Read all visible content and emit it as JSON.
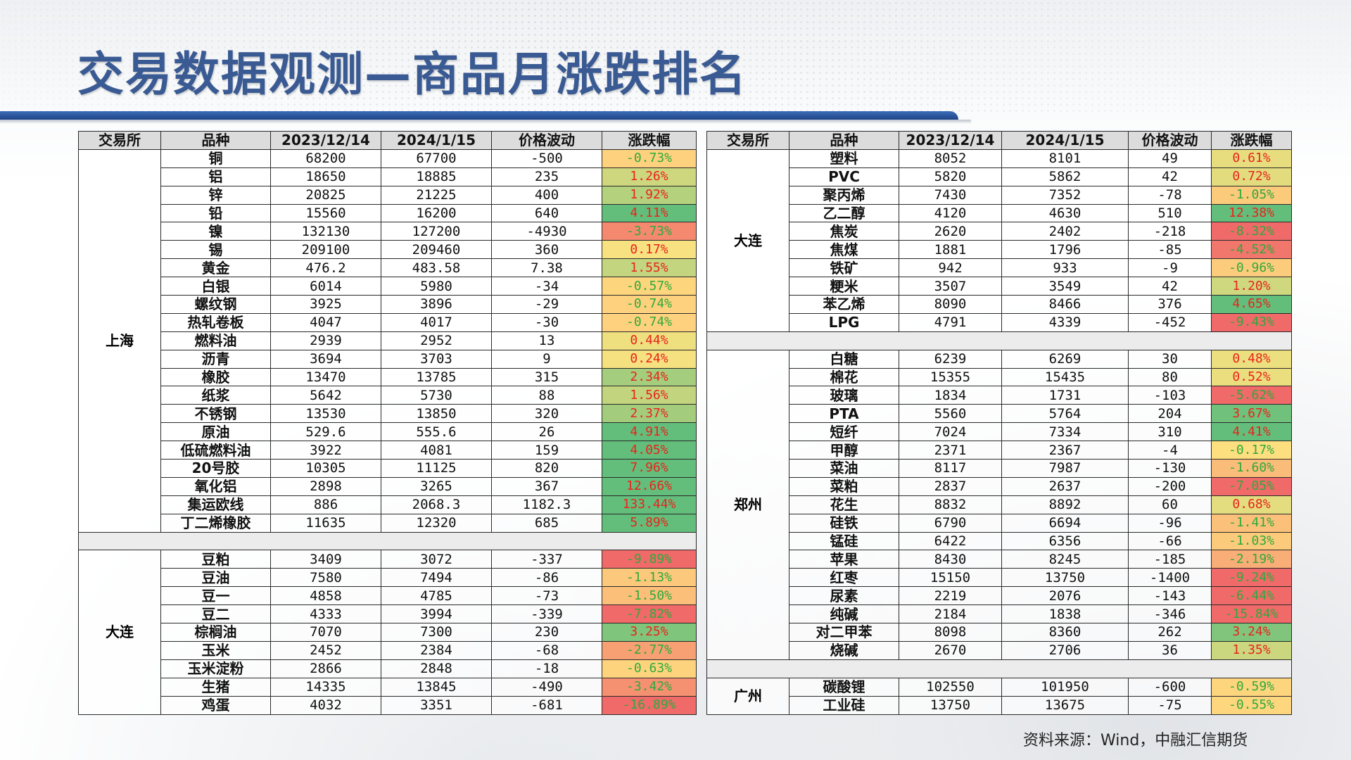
{
  "title": "交易数据观测—商品月涨跌排名",
  "source": "资料来源：Wind，中融汇信期货",
  "headers": [
    "交易所",
    "品种",
    "2023/12/14",
    "2024/1/15",
    "价格波动",
    "涨跌幅"
  ],
  "colors": {
    "title": "#3a5a93",
    "red": "#f06a6a",
    "green": "#63be7b",
    "yellow": "#ffe380",
    "rise_text": "#e8241c",
    "fall_text": "#2eaa3c"
  },
  "left_groups": [
    {
      "exchange": "上海",
      "rows": [
        [
          "铜",
          "68200",
          "67700",
          "-500",
          "-0.73%"
        ],
        [
          "铝",
          "18650",
          "18885",
          "235",
          "1.26%"
        ],
        [
          "锌",
          "20825",
          "21225",
          "400",
          "1.92%"
        ],
        [
          "铅",
          "15560",
          "16200",
          "640",
          "4.11%"
        ],
        [
          "镍",
          "132130",
          "127200",
          "-4930",
          "-3.73%"
        ],
        [
          "锡",
          "209100",
          "209460",
          "360",
          "0.17%"
        ],
        [
          "黄金",
          "476.2",
          "483.58",
          "7.38",
          "1.55%"
        ],
        [
          "白银",
          "6014",
          "5980",
          "-34",
          "-0.57%"
        ],
        [
          "螺纹钢",
          "3925",
          "3896",
          "-29",
          "-0.74%"
        ],
        [
          "热轧卷板",
          "4047",
          "4017",
          "-30",
          "-0.74%"
        ],
        [
          "燃料油",
          "2939",
          "2952",
          "13",
          "0.44%"
        ],
        [
          "沥青",
          "3694",
          "3703",
          "9",
          "0.24%"
        ],
        [
          "橡胶",
          "13470",
          "13785",
          "315",
          "2.34%"
        ],
        [
          "纸浆",
          "5642",
          "5730",
          "88",
          "1.56%"
        ],
        [
          "不锈钢",
          "13530",
          "13850",
          "320",
          "2.37%"
        ],
        [
          "原油",
          "529.6",
          "555.6",
          "26",
          "4.91%"
        ],
        [
          "低硫燃料油",
          "3922",
          "4081",
          "159",
          "4.05%"
        ],
        [
          "20号胶",
          "10305",
          "11125",
          "820",
          "7.96%"
        ],
        [
          "氧化铝",
          "2898",
          "3265",
          "367",
          "12.66%"
        ],
        [
          "集运欧线",
          "886",
          "2068.3",
          "1182.3",
          "133.44%"
        ],
        [
          "丁二烯橡胶",
          "11635",
          "12320",
          "685",
          "5.89%"
        ]
      ]
    },
    {
      "exchange": "大连",
      "rows": [
        [
          "豆粕",
          "3409",
          "3072",
          "-337",
          "-9.89%"
        ],
        [
          "豆油",
          "7580",
          "7494",
          "-86",
          "-1.13%"
        ],
        [
          "豆一",
          "4858",
          "4785",
          "-73",
          "-1.50%"
        ],
        [
          "豆二",
          "4333",
          "3994",
          "-339",
          "-7.82%"
        ],
        [
          "棕榈油",
          "7070",
          "7300",
          "230",
          "3.25%"
        ],
        [
          "玉米",
          "2452",
          "2384",
          "-68",
          "-2.77%"
        ],
        [
          "玉米淀粉",
          "2866",
          "2848",
          "-18",
          "-0.63%"
        ],
        [
          "生猪",
          "14335",
          "13845",
          "-490",
          "-3.42%"
        ],
        [
          "鸡蛋",
          "4032",
          "3351",
          "-681",
          "-16.89%"
        ]
      ]
    }
  ],
  "right_groups": [
    {
      "exchange": "大连",
      "rows": [
        [
          "塑料",
          "8052",
          "8101",
          "49",
          "0.61%"
        ],
        [
          "PVC",
          "5820",
          "5862",
          "42",
          "0.72%"
        ],
        [
          "聚丙烯",
          "7430",
          "7352",
          "-78",
          "-1.05%"
        ],
        [
          "乙二醇",
          "4120",
          "4630",
          "510",
          "12.38%"
        ],
        [
          "焦炭",
          "2620",
          "2402",
          "-218",
          "-8.32%"
        ],
        [
          "焦煤",
          "1881",
          "1796",
          "-85",
          "-4.52%"
        ],
        [
          "铁矿",
          "942",
          "933",
          "-9",
          "-0.96%"
        ],
        [
          "粳米",
          "3507",
          "3549",
          "42",
          "1.20%"
        ],
        [
          "苯乙烯",
          "8090",
          "8466",
          "376",
          "4.65%"
        ],
        [
          "LPG",
          "4791",
          "4339",
          "-452",
          "-9.43%"
        ]
      ]
    },
    {
      "exchange": "郑州",
      "rows": [
        [
          "白糖",
          "6239",
          "6269",
          "30",
          "0.48%"
        ],
        [
          "棉花",
          "15355",
          "15435",
          "80",
          "0.52%"
        ],
        [
          "玻璃",
          "1834",
          "1731",
          "-103",
          "-5.62%"
        ],
        [
          "PTA",
          "5560",
          "5764",
          "204",
          "3.67%"
        ],
        [
          "短纤",
          "7024",
          "7334",
          "310",
          "4.41%"
        ],
        [
          "甲醇",
          "2371",
          "2367",
          "-4",
          "-0.17%"
        ],
        [
          "菜油",
          "8117",
          "7987",
          "-130",
          "-1.60%"
        ],
        [
          "菜粕",
          "2837",
          "2637",
          "-200",
          "-7.05%"
        ],
        [
          "花生",
          "8832",
          "8892",
          "60",
          "0.68%"
        ],
        [
          "硅铁",
          "6790",
          "6694",
          "-96",
          "-1.41%"
        ],
        [
          "锰硅",
          "6422",
          "6356",
          "-66",
          "-1.03%"
        ],
        [
          "苹果",
          "8430",
          "8245",
          "-185",
          "-2.19%"
        ],
        [
          "红枣",
          "15150",
          "13750",
          "-1400",
          "-9.24%"
        ],
        [
          "尿素",
          "2219",
          "2076",
          "-143",
          "-6.44%"
        ],
        [
          "纯碱",
          "2184",
          "1838",
          "-346",
          "-15.84%"
        ],
        [
          "对二甲苯",
          "8098",
          "8360",
          "262",
          "3.24%"
        ],
        [
          "烧碱",
          "2670",
          "2706",
          "36",
          "1.35%"
        ]
      ]
    },
    {
      "exchange": "广州",
      "rows": [
        [
          "碳酸锂",
          "102550",
          "101950",
          "-600",
          "-0.59%"
        ],
        [
          "工业硅",
          "13750",
          "13675",
          "-75",
          "-0.55%"
        ]
      ]
    }
  ]
}
